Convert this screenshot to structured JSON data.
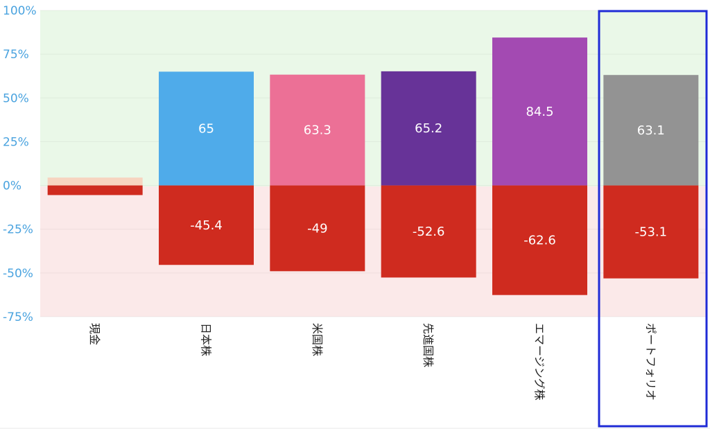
{
  "chart_data": {
    "type": "bar",
    "categories": [
      "現金",
      "日本株",
      "米国株",
      "先進国株",
      "エマージング株",
      "ポートフォリオ"
    ],
    "series": [
      {
        "values": [
          4.5,
          65,
          63.3,
          65.2,
          84.5,
          63.1
        ]
      },
      {
        "values": [
          -5.5,
          -45.4,
          -49,
          -52.6,
          -62.6,
          -53.1
        ]
      }
    ],
    "data_labels": {
      "positive": [
        "",
        "65",
        "63.3",
        "65.2",
        "84.5",
        "63.1"
      ],
      "negative": [
        "",
        "-45.4",
        "-49",
        "-52.6",
        "-62.6",
        "-53.1"
      ]
    },
    "yticks": [
      "100%",
      "75%",
      "50%",
      "25%",
      "0%",
      "-25%",
      "-50%",
      "-75%"
    ],
    "ylim": [
      -75,
      100
    ],
    "colors": {
      "positive": [
        "#f7d4c0",
        "#4fabea",
        "#ec7096",
        "#673398",
        "#a34ab2",
        "#939393"
      ],
      "negative": "#cf2b1f",
      "positive_band": "#eaf8e8",
      "negative_band": "#fbe9e9",
      "highlight_border": "#1f2bd6",
      "tick_text": "#4aa3df"
    },
    "highlighted_category": "ポートフォリオ",
    "title": "",
    "xlabel": "",
    "ylabel": "",
    "grid": true
  }
}
